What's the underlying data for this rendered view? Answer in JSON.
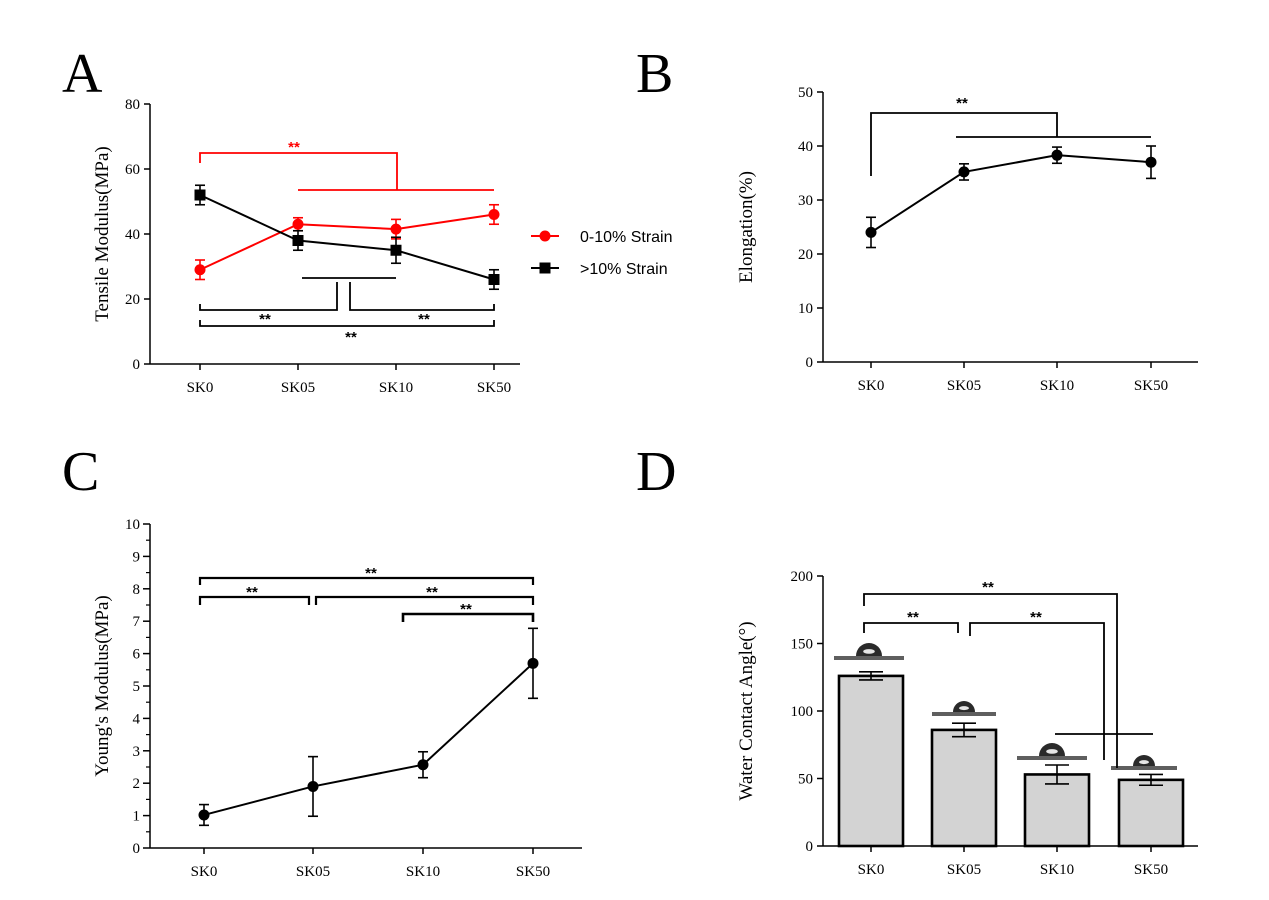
{
  "chart_data": [
    {
      "panel": "A",
      "type": "line",
      "categories": [
        "SK0",
        "SK05",
        "SK10",
        "SK50"
      ],
      "ylabel": "Tensile Modulus(MPa)",
      "ylim": [
        0,
        80
      ],
      "yticks": [
        "0",
        "20",
        "40",
        "60",
        "80"
      ],
      "legend_position": "right",
      "series": [
        {
          "name": "0-10% Strain",
          "color": "#ff0000",
          "marker": "circle",
          "values": [
            29,
            43,
            41.5,
            46
          ],
          "errors": [
            3,
            2,
            3,
            3
          ]
        },
        {
          "name": ">10% Strain",
          "color": "#000000",
          "marker": "square",
          "values": [
            52,
            38,
            35,
            26
          ],
          "errors": [
            3,
            3,
            4,
            3
          ]
        }
      ],
      "significance": [
        {
          "label": "**",
          "color": "#ff0000"
        },
        {
          "label": "**",
          "color": "#000000"
        },
        {
          "label": "**",
          "color": "#000000"
        },
        {
          "label": "**",
          "color": "#000000"
        }
      ]
    },
    {
      "panel": "B",
      "type": "line",
      "categories": [
        "SK0",
        "SK05",
        "SK10",
        "SK50"
      ],
      "ylabel": "Elongation(%)",
      "ylim": [
        0,
        50
      ],
      "yticks": [
        "0",
        "10",
        "20",
        "30",
        "40",
        "50"
      ],
      "series": [
        {
          "color": "#000000",
          "marker": "circle",
          "values": [
            24,
            35.2,
            38.3,
            37
          ],
          "errors": [
            2.8,
            1.5,
            1.5,
            3
          ]
        }
      ],
      "significance": [
        {
          "label": "**"
        }
      ]
    },
    {
      "panel": "C",
      "type": "line",
      "categories": [
        "SK0",
        "SK05",
        "SK10",
        "SK50"
      ],
      "ylabel": "Young's Modulus(MPa)",
      "ylim": [
        0,
        10
      ],
      "yticks": [
        "0",
        "1",
        "2",
        "3",
        "4",
        "5",
        "6",
        "7",
        "8",
        "9",
        "10"
      ],
      "series": [
        {
          "color": "#000000",
          "marker": "circle",
          "values": [
            1.02,
            1.9,
            2.57,
            5.7
          ],
          "errors": [
            0.32,
            0.92,
            0.4,
            1.08
          ]
        }
      ],
      "significance": [
        {
          "label": "**"
        },
        {
          "label": "**"
        },
        {
          "label": "**"
        },
        {
          "label": "**"
        }
      ]
    },
    {
      "panel": "D",
      "type": "bar",
      "categories": [
        "SK0",
        "SK05",
        "SK10",
        "SK50"
      ],
      "ylabel": "Water Contact Angle(°)",
      "ylim": [
        0,
        200
      ],
      "yticks": [
        "0",
        "50",
        "100",
        "150",
        "200"
      ],
      "bar_color": "#d3d3d3",
      "series": [
        {
          "color": "#000000",
          "values": [
            126,
            86,
            53,
            49
          ],
          "errors": [
            3,
            5,
            7,
            4
          ]
        }
      ],
      "significance": [
        {
          "label": "**"
        },
        {
          "label": "**"
        },
        {
          "label": "**"
        }
      ]
    }
  ]
}
